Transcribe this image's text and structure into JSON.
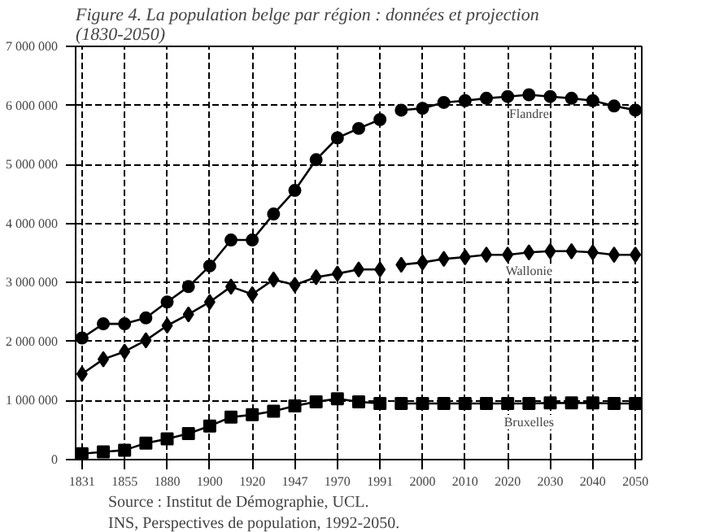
{
  "chart_data": {
    "type": "line",
    "title": "Figure 4. La population belge par région : données et projection (1830-2050)",
    "categories": [
      "1831",
      null,
      "1855",
      null,
      "1880",
      null,
      "1900",
      null,
      "1920",
      null,
      "1947",
      null,
      "1970",
      null,
      "1991",
      null,
      "2000",
      null,
      "2010",
      null,
      "2020",
      null,
      "2030",
      null,
      "2040",
      null,
      "2050"
    ],
    "series": [
      {
        "color": "#000000",
        "marker": "circle",
        "values": [
          2060000,
          2300000,
          2300000,
          2400000,
          2670000,
          2930000,
          3280000,
          3720000,
          3720000,
          4160000,
          4560000,
          5080000,
          5450000,
          5610000,
          5760000,
          null,
          null,
          null,
          null,
          null,
          null,
          null,
          null,
          null,
          null,
          null,
          null
        ]
      },
      {
        "name": "Flandre",
        "color": "#000000",
        "marker": "circle",
        "values": [
          null,
          null,
          null,
          null,
          null,
          null,
          null,
          null,
          null,
          null,
          null,
          null,
          null,
          null,
          null,
          5920000,
          5950000,
          6050000,
          6080000,
          6120000,
          6150000,
          6180000,
          6150000,
          6120000,
          6080000,
          5990000,
          5920000
        ]
      },
      {
        "color": "#000000",
        "marker": "diamond",
        "values": [
          1450000,
          1700000,
          1830000,
          2020000,
          2270000,
          2460000,
          2670000,
          2930000,
          2800000,
          3050000,
          2960000,
          3090000,
          3150000,
          3220000,
          3220000,
          null,
          null,
          null,
          null,
          null,
          null,
          null,
          null,
          null,
          null,
          null,
          null
        ]
      },
      {
        "name": "Wallonie",
        "color": "#000000",
        "marker": "diamond",
        "values": [
          null,
          null,
          null,
          null,
          null,
          null,
          null,
          null,
          null,
          null,
          null,
          null,
          null,
          null,
          null,
          3300000,
          3340000,
          3400000,
          3430000,
          3470000,
          3470000,
          3510000,
          3530000,
          3530000,
          3510000,
          3470000,
          3470000
        ]
      },
      {
        "color": "#000000",
        "marker": "square",
        "values": [
          100000,
          130000,
          160000,
          280000,
          350000,
          440000,
          570000,
          720000,
          760000,
          820000,
          910000,
          980000,
          1030000,
          980000,
          950000,
          null,
          null,
          null,
          null,
          null,
          null,
          null,
          null,
          null,
          null,
          null,
          null
        ]
      },
      {
        "name": "Bruxelles",
        "color": "#000000",
        "marker": "square",
        "values": [
          null,
          null,
          null,
          null,
          null,
          null,
          null,
          null,
          null,
          null,
          null,
          null,
          null,
          null,
          null,
          950000,
          950000,
          950000,
          950000,
          950000,
          950000,
          950000,
          960000,
          960000,
          960000,
          950000,
          950000
        ]
      }
    ],
    "ylim": [
      0,
      7000000
    ],
    "yticks": [
      0,
      {
        "value": 1000000,
        "label": "1 000 000"
      },
      {
        "value": 2000000,
        "label": "2 000 000"
      },
      {
        "value": 3000000,
        "label": "3 000 000"
      },
      {
        "value": 4000000,
        "label": "4 000 000"
      },
      {
        "value": 5000000,
        "label": "5 000 000"
      },
      {
        "value": 6000000,
        "label": "6 000 000"
      },
      {
        "value": 7000000,
        "label": "7 000 000"
      }
    ],
    "grid": true,
    "annotations": [
      "Source : Institut de Démographie, UCL.",
      "INS, Perspectives de population, 1992-2050."
    ]
  }
}
